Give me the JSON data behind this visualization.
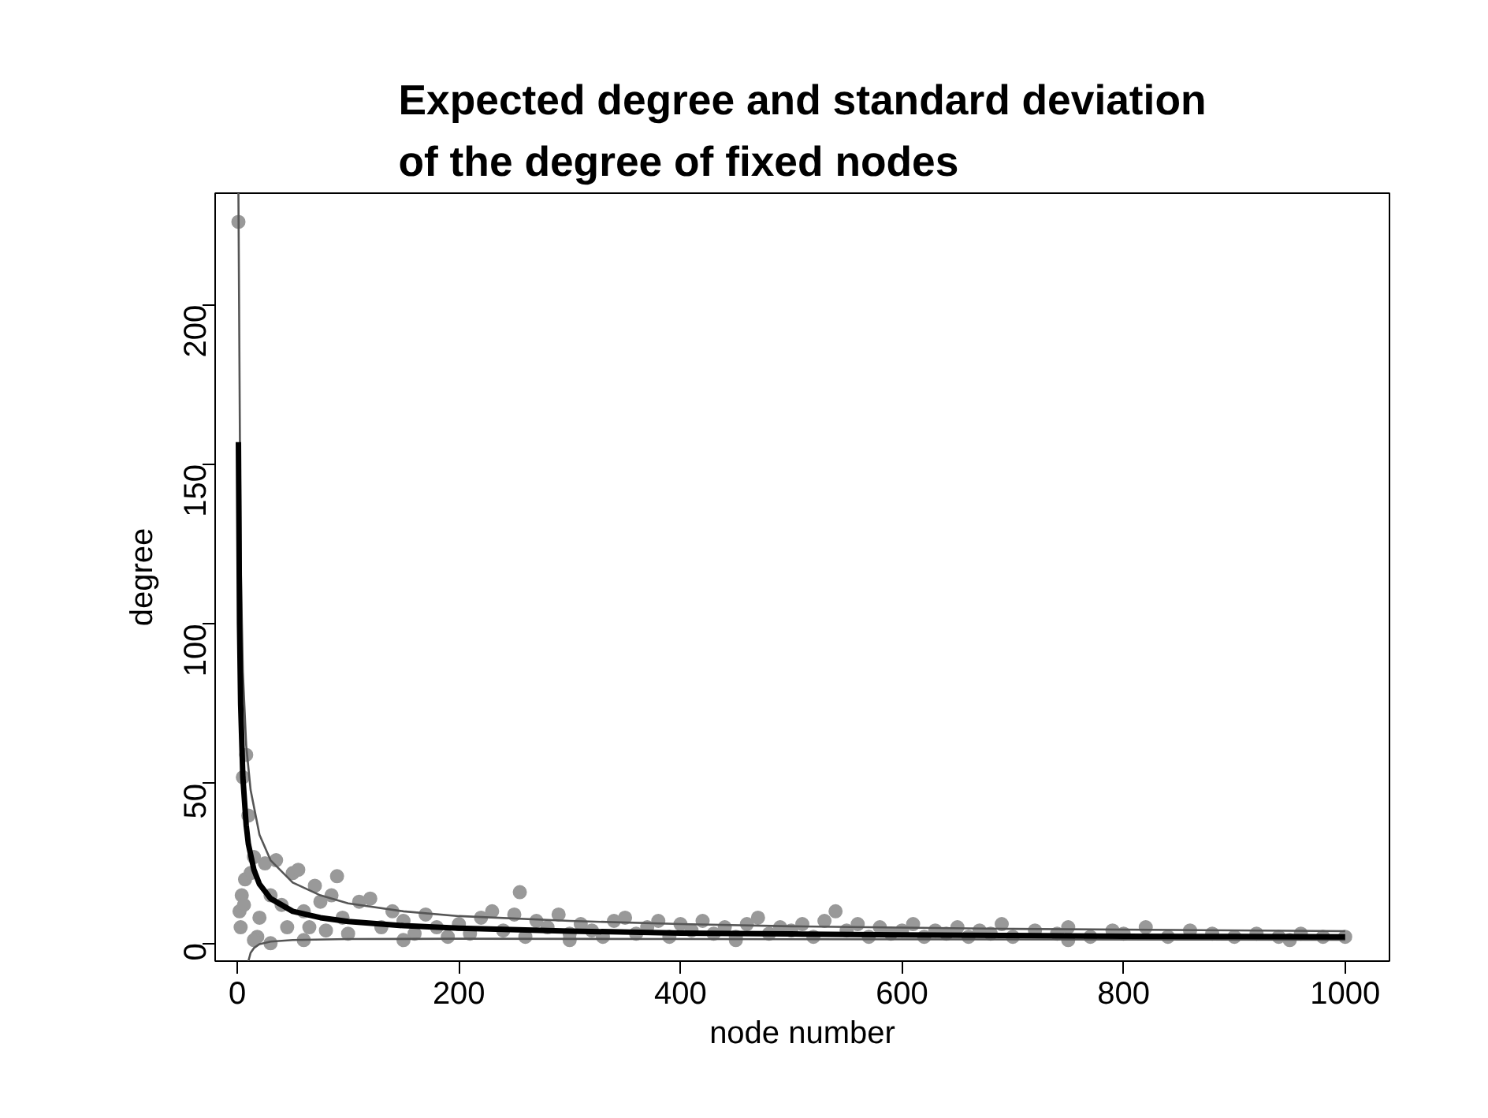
{
  "chart_data": {
    "type": "scatter",
    "title": "Expected degree and standard deviation\nof the degree of fixed nodes",
    "xlabel": "node number",
    "ylabel": "degree",
    "xlim": [
      -20,
      1040
    ],
    "ylim": [
      -5.6,
      235
    ],
    "xticks": [
      0,
      200,
      400,
      600,
      800,
      1000
    ],
    "yticks": [
      0,
      50,
      100,
      150,
      200
    ],
    "grid": false,
    "series": [
      {
        "marker": "circle",
        "color": "#999999",
        "x": [
          1,
          5,
          8,
          3,
          2,
          4,
          6,
          7,
          10,
          12,
          15,
          18,
          20,
          25,
          30,
          35,
          40,
          45,
          50,
          55,
          60,
          65,
          70,
          75,
          80,
          85,
          90,
          95,
          100,
          110,
          120,
          130,
          140,
          150,
          160,
          170,
          180,
          190,
          200,
          210,
          220,
          230,
          240,
          250,
          255,
          260,
          270,
          280,
          290,
          300,
          310,
          320,
          330,
          340,
          350,
          360,
          370,
          380,
          390,
          400,
          410,
          420,
          430,
          440,
          450,
          460,
          470,
          480,
          490,
          500,
          510,
          520,
          530,
          540,
          550,
          560,
          570,
          580,
          590,
          600,
          610,
          620,
          630,
          640,
          650,
          660,
          670,
          680,
          690,
          700,
          720,
          740,
          750,
          770,
          790,
          800,
          820,
          840,
          860,
          880,
          900,
          920,
          940,
          960,
          980,
          1000,
          15,
          30,
          60,
          150,
          300,
          450,
          750,
          950
        ],
        "values": [
          226,
          52,
          59,
          5,
          10,
          15,
          12,
          20,
          40,
          22,
          27,
          2,
          8,
          25,
          15,
          26,
          12,
          5,
          22,
          23,
          10,
          5,
          18,
          13,
          4,
          15,
          21,
          8,
          3,
          13,
          14,
          5,
          10,
          7,
          3,
          9,
          5,
          2,
          6,
          3,
          8,
          10,
          4,
          9,
          16,
          2,
          7,
          5,
          9,
          3,
          6,
          4,
          2,
          7,
          8,
          3,
          5,
          7,
          2,
          6,
          4,
          7,
          3,
          5,
          2,
          6,
          8,
          3,
          5,
          4,
          6,
          2,
          7,
          10,
          4,
          6,
          2,
          5,
          3,
          4,
          6,
          2,
          4,
          3,
          5,
          2,
          4,
          3,
          6,
          2,
          4,
          3,
          5,
          2,
          4,
          3,
          5,
          2,
          4,
          3,
          2,
          3,
          2,
          3,
          2,
          2,
          1,
          0,
          1,
          1,
          1,
          1,
          1,
          1
        ]
      },
      {
        "type": "line",
        "color": "#555555",
        "line_style": "solid",
        "x": [
          1,
          3,
          5,
          8,
          12,
          20,
          30,
          50,
          75,
          100,
          150,
          200,
          300,
          400,
          500,
          700,
          1000
        ],
        "values": [
          235,
          120,
          85,
          62,
          48,
          34,
          26,
          19,
          15,
          12.5,
          10,
          8.5,
          7,
          6,
          5.3,
          4.5,
          3.8
        ]
      },
      {
        "type": "line",
        "color": "#555555",
        "line_style": "solid",
        "x": [
          10,
          12,
          15,
          20,
          30,
          50,
          100,
          200,
          400,
          700,
          1000
        ],
        "values": [
          -5.6,
          -3,
          -1.5,
          -0.3,
          0.5,
          1,
          1.3,
          1.4,
          1.3,
          1.2,
          1.1
        ]
      },
      {
        "type": "line",
        "color": "#000000",
        "line_style": "solid",
        "x": [
          1,
          2,
          3,
          5,
          8,
          10,
          15,
          20,
          30,
          50,
          75,
          100,
          150,
          200,
          300,
          400,
          500,
          600,
          700,
          800,
          900,
          1000
        ],
        "values": [
          157,
          100,
          75,
          52,
          37,
          31,
          23,
          18.5,
          14,
          10,
          8,
          6.8,
          5.5,
          4.7,
          3.8,
          3.2,
          2.9,
          2.6,
          2.4,
          2.2,
          2.1,
          2
        ]
      }
    ]
  }
}
